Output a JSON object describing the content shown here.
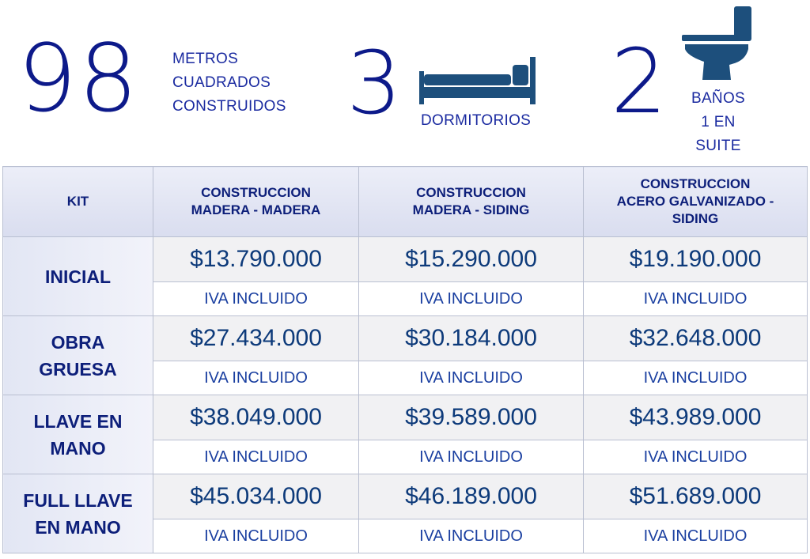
{
  "stats": {
    "area": {
      "value": "98",
      "label_lines": [
        "METROS",
        "CUADRADOS",
        "CONSTRUIDOS"
      ]
    },
    "bedrooms": {
      "value": "3",
      "label": "DORMITORIOS",
      "icon": "bed-icon"
    },
    "bathrooms": {
      "value": "2",
      "label_lines": [
        "BAÑOS",
        "1 EN",
        "SUITE"
      ],
      "icon": "toilet-icon"
    }
  },
  "table": {
    "corner_header": "KIT",
    "columns": [
      {
        "lines": [
          "CONSTRUCCION",
          "MADERA - MADERA"
        ]
      },
      {
        "lines": [
          "CONSTRUCCION",
          "MADERA - SIDING"
        ]
      },
      {
        "lines": [
          "CONSTRUCCION",
          "ACERO GALVANIZADO -",
          "SIDING"
        ]
      }
    ],
    "rows": [
      {
        "label_lines": [
          "INICIAL"
        ],
        "prices": [
          "$13.790.000",
          "$15.290.000",
          "$19.190.000"
        ],
        "notes": [
          "IVA INCLUIDO",
          "IVA INCLUIDO",
          "IVA INCLUIDO"
        ]
      },
      {
        "label_lines": [
          "OBRA",
          "GRUESA"
        ],
        "prices": [
          "$27.434.000",
          "$30.184.000",
          "$32.648.000"
        ],
        "notes": [
          "IVA INCLUIDO",
          "IVA INCLUIDO",
          "IVA INCLUIDO"
        ]
      },
      {
        "label_lines": [
          "LLAVE EN",
          "MANO"
        ],
        "prices": [
          "$38.049.000",
          "$39.589.000",
          "$43.989.000"
        ],
        "notes": [
          "IVA INCLUIDO",
          "IVA INCLUIDO",
          "IVA INCLUIDO"
        ]
      },
      {
        "label_lines": [
          "FULL LLAVE",
          "EN MANO"
        ],
        "prices": [
          "$45.034.000",
          "$46.189.000",
          "$51.689.000"
        ],
        "notes": [
          "IVA INCLUIDO",
          "IVA INCLUIDO",
          "IVA INCLUIDO"
        ]
      }
    ]
  },
  "colors": {
    "navy": "#0d1a8a",
    "icon": "#1d4f7c",
    "border": "#b9bfd1"
  }
}
